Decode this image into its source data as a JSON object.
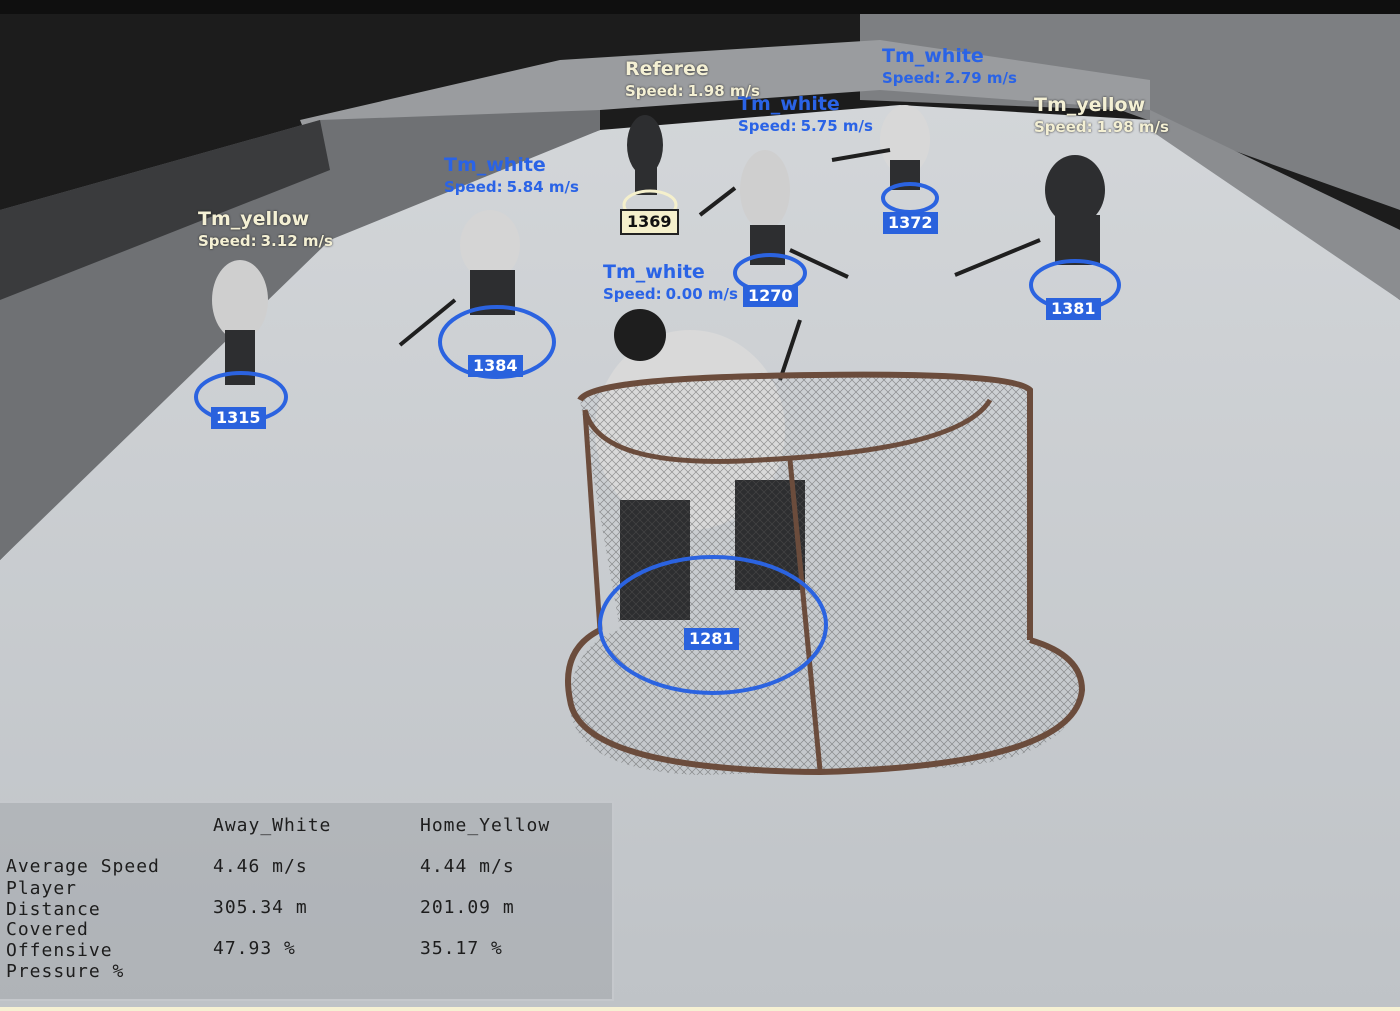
{
  "players": [
    {
      "team": "Tm_white",
      "speed_label": "Speed:",
      "speed": "2.79 m/s",
      "id": "1372"
    },
    {
      "team": "Tm_white",
      "speed_label": "Speed:",
      "speed": "5.75 m/s",
      "id": "1270"
    },
    {
      "team": "Tm_white",
      "speed_label": "Speed:",
      "speed": "5.84 m/s",
      "id": "1384"
    },
    {
      "team": "Tm_white",
      "speed_label": "Speed:",
      "speed": "0.00 m/s",
      "id": "1281"
    },
    {
      "team": "Tm_yellow",
      "speed_label": "Speed:",
      "speed": "3.12 m/s",
      "id": "1315"
    },
    {
      "team": "Tm_yellow",
      "speed_label": "Speed:",
      "speed": "1.98 m/s",
      "id": "1381"
    },
    {
      "team": "Referee",
      "speed_label": "Speed:",
      "speed": "1.98 m/s",
      "id": "1369"
    }
  ],
  "stats": {
    "headers": [
      "Away_White",
      "Home_Yellow"
    ],
    "rows": [
      {
        "label": "Average Speed",
        "away": "4.46 m/s",
        "home": "4.44 m/s"
      },
      {
        "label": "Player\nDistance",
        "away": "305.34 m",
        "home": "201.09 m"
      },
      {
        "label": "Covered\nOffensive",
        "away": "47.93 %",
        "home": "35.17 %"
      },
      {
        "label": "Pressure %",
        "away": "",
        "home": ""
      }
    ]
  },
  "colors": {
    "team_white": "#2a63e6",
    "team_yellow": "#f4f0d4",
    "ring": "#2b63e0",
    "ice": "#c9cdd1"
  }
}
